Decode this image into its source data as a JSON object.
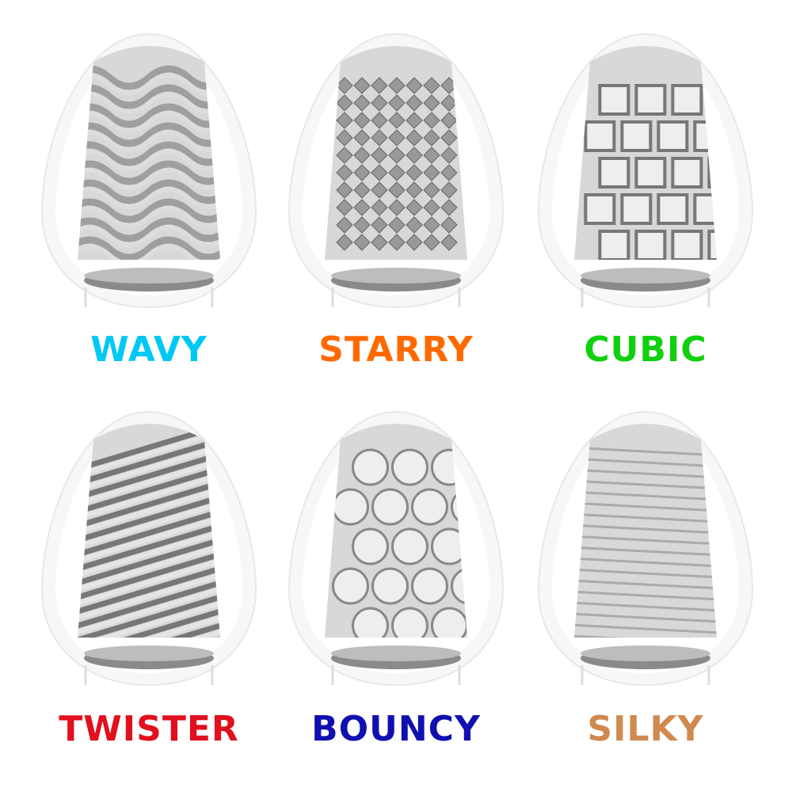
{
  "products": [
    {
      "name": "WAVY",
      "color": "#00c8f5",
      "texture": "waves"
    },
    {
      "name": "STARRY",
      "color": "#ff6a00",
      "texture": "spikes"
    },
    {
      "name": "CUBIC",
      "color": "#10d010",
      "texture": "cubes"
    },
    {
      "name": "TWISTER",
      "color": "#e0101e",
      "texture": "twist"
    },
    {
      "name": "BOUNCY",
      "color": "#1010b0",
      "texture": "bumps"
    },
    {
      "name": "SILKY",
      "color": "#d08a50",
      "texture": "threads"
    }
  ]
}
